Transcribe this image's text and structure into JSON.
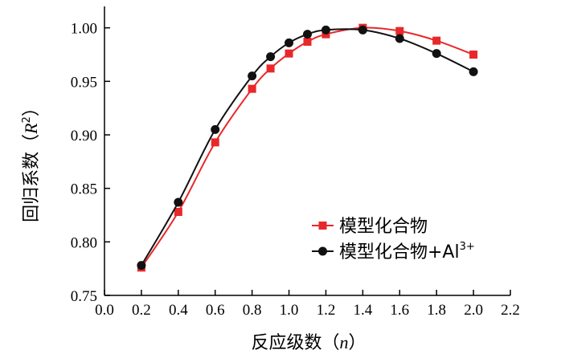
{
  "chart_data": {
    "type": "line",
    "xlabel_cn": "反应级数（",
    "xlabel_var": "n",
    "xlabel_end": "）",
    "ylabel_cn": "回归系数（",
    "ylabel_var": "R",
    "ylabel_sup": "2",
    "ylabel_end": "）",
    "xlim": [
      0.0,
      2.2
    ],
    "ylim": [
      0.75,
      1.02
    ],
    "xticks": [
      "0.0",
      "0.2",
      "0.4",
      "0.6",
      "0.8",
      "1.0",
      "1.2",
      "1.4",
      "1.6",
      "1.8",
      "2.0",
      "2.2"
    ],
    "yticks": [
      "0.75",
      "0.80",
      "0.85",
      "0.90",
      "0.95",
      "1.00"
    ],
    "grid": false,
    "legend_position": "lower-right",
    "series": [
      {
        "name": "模型化合物",
        "name_main": "模型化合物",
        "name_sup": "",
        "color": "#e8282a",
        "marker": "square",
        "x": [
          0.2,
          0.4,
          0.6,
          0.8,
          0.9,
          1.0,
          1.1,
          1.2,
          1.4,
          1.6,
          1.8,
          2.0
        ],
        "y": [
          0.776,
          0.828,
          0.893,
          0.943,
          0.962,
          0.976,
          0.987,
          0.994,
          1.0,
          0.997,
          0.988,
          0.975
        ]
      },
      {
        "name": "模型化合物+Al3+",
        "name_main": "模型化合物+Al",
        "name_sup": "3+",
        "color": "#111111",
        "marker": "circle",
        "x": [
          0.2,
          0.4,
          0.6,
          0.8,
          0.9,
          1.0,
          1.1,
          1.2,
          1.4,
          1.6,
          1.8,
          2.0
        ],
        "y": [
          0.778,
          0.837,
          0.905,
          0.955,
          0.973,
          0.986,
          0.994,
          0.998,
          0.998,
          0.99,
          0.976,
          0.959
        ]
      }
    ]
  }
}
